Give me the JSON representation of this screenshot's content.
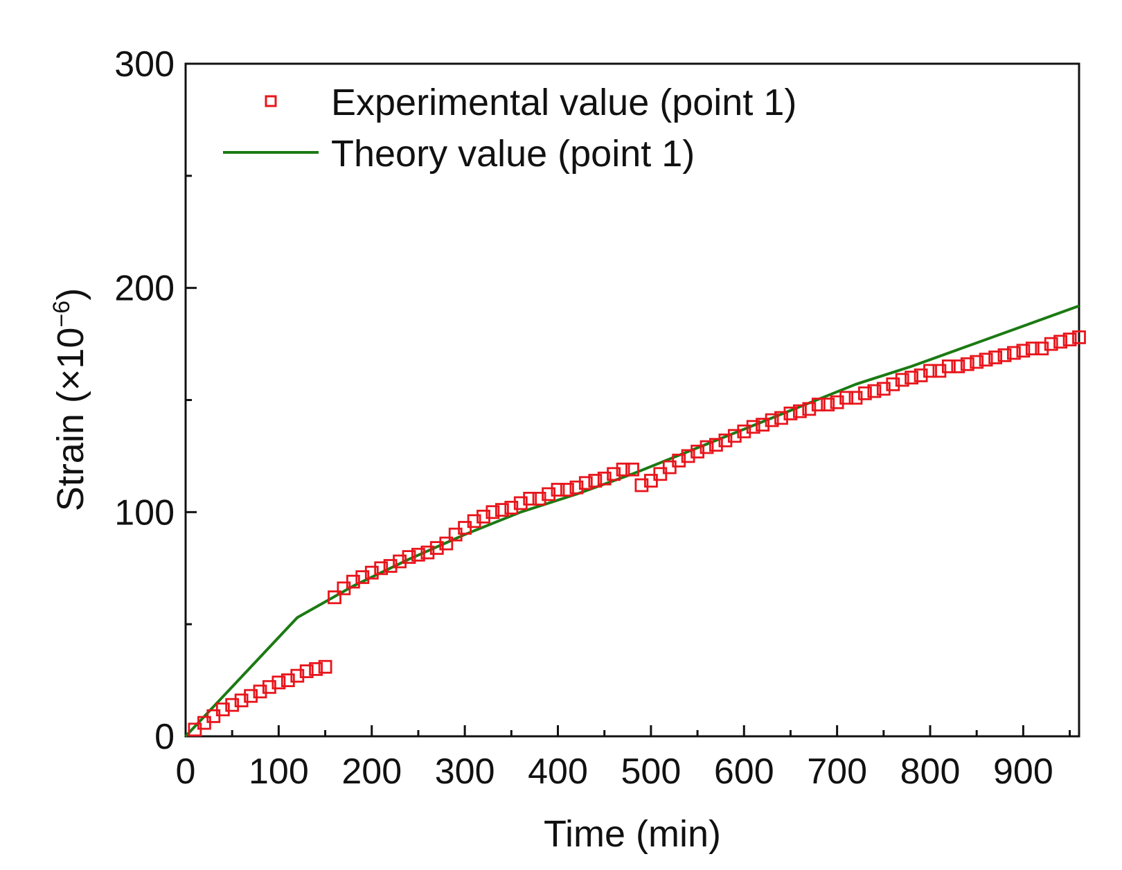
{
  "chart_data": {
    "type": "scatter",
    "title": "",
    "xlabel": "Time (min)",
    "ylabel_main": "Strain (×10",
    "ylabel_exp": "−6",
    "ylabel_close": ")",
    "xlim": [
      0,
      960
    ],
    "ylim": [
      0,
      300
    ],
    "xticks": [
      0,
      100,
      200,
      300,
      400,
      500,
      600,
      700,
      800,
      900
    ],
    "xtick_labels": [
      "0",
      "100",
      "200",
      "300",
      "400",
      "500",
      "600",
      "700",
      "800",
      "900"
    ],
    "xminor": [
      50,
      150,
      250,
      350,
      450,
      550,
      650,
      750,
      850,
      950
    ],
    "yticks": [
      0,
      100,
      200,
      300
    ],
    "ytick_labels": [
      "0",
      "100",
      "200",
      "300"
    ],
    "yminor": [
      50,
      150,
      250
    ],
    "legend_position": "top-left",
    "series": [
      {
        "name": "Experimental value (point 1)",
        "kind": "markers",
        "marker": "open-square",
        "color": "#e8141b",
        "x": [
          10,
          20,
          30,
          40,
          50,
          60,
          70,
          80,
          90,
          100,
          110,
          120,
          130,
          140,
          150,
          160,
          170,
          180,
          190,
          200,
          210,
          220,
          230,
          240,
          250,
          260,
          270,
          280,
          290,
          300,
          310,
          320,
          330,
          340,
          350,
          360,
          370,
          380,
          390,
          400,
          410,
          420,
          430,
          440,
          450,
          460,
          470,
          480,
          490,
          500,
          510,
          520,
          530,
          540,
          550,
          560,
          570,
          580,
          590,
          600,
          610,
          620,
          630,
          640,
          650,
          660,
          670,
          680,
          690,
          700,
          710,
          720,
          730,
          740,
          750,
          760,
          770,
          780,
          790,
          800,
          810,
          820,
          830,
          840,
          850,
          860,
          870,
          880,
          890,
          900,
          910,
          920,
          930,
          940,
          950,
          960
        ],
        "y": [
          3,
          6,
          9,
          12,
          14,
          16,
          18,
          20,
          22,
          24,
          25,
          27,
          29,
          30,
          31,
          62,
          66,
          69,
          71,
          73,
          75,
          76,
          78,
          80,
          81,
          82,
          84,
          86,
          90,
          93,
          96,
          98,
          100,
          101,
          102,
          104,
          106,
          106,
          108,
          110,
          110,
          111,
          113,
          114,
          115,
          117,
          119,
          119,
          112,
          114,
          117,
          120,
          123,
          125,
          127,
          129,
          130,
          132,
          134,
          136,
          138,
          139,
          141,
          142,
          144,
          145,
          146,
          148,
          148,
          149,
          151,
          151,
          153,
          154,
          155,
          157,
          159,
          160,
          161,
          163,
          163,
          165,
          165,
          166,
          167,
          168,
          169,
          170,
          171,
          172,
          173,
          173,
          175,
          176,
          177,
          178
        ]
      },
      {
        "name": "Theory value (point 1)",
        "kind": "line",
        "color": "#1b7a12",
        "x": [
          0,
          120,
          180,
          240,
          300,
          360,
          420,
          480,
          540,
          600,
          660,
          720,
          780,
          840,
          900,
          960
        ],
        "y": [
          0,
          53,
          67,
          79,
          90,
          100,
          108,
          117,
          127,
          137,
          147,
          157,
          165,
          174,
          183,
          192
        ]
      }
    ]
  }
}
